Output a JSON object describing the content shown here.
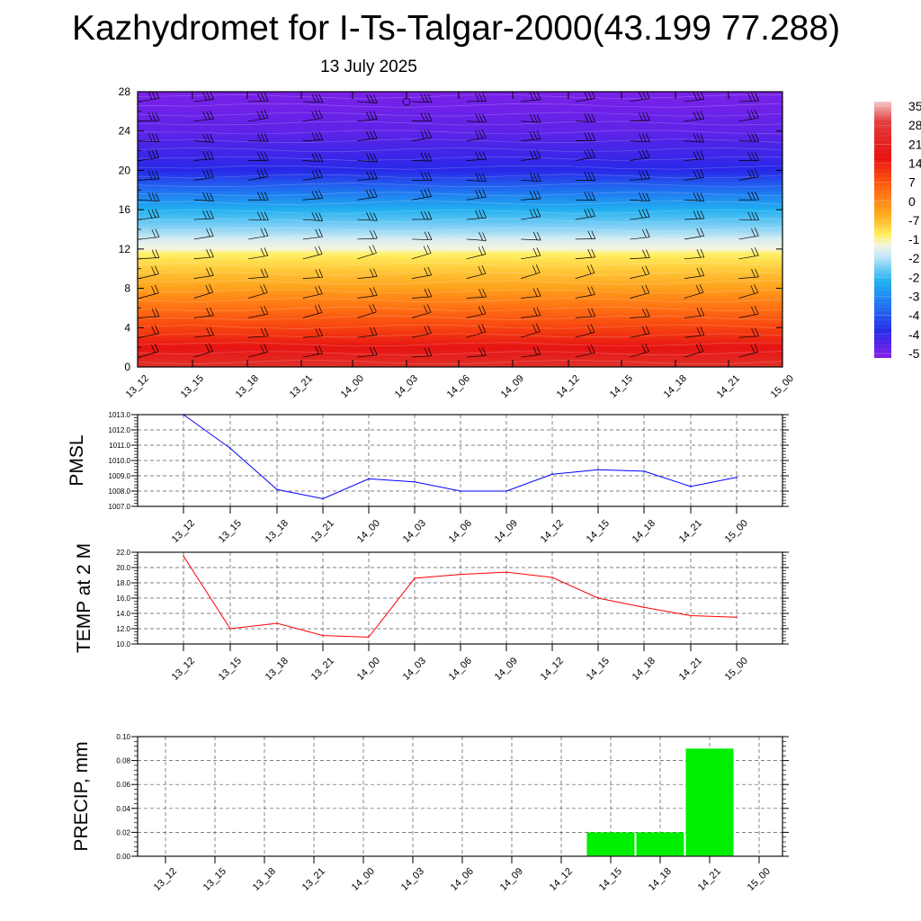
{
  "title": "Kazhydromet for I-Ts-Talgar-2000(43.199 77.288)",
  "subtitle": "13 July 2025",
  "chart_data": [
    {
      "type": "heatmap",
      "name": "vertical-temperature-wind-section",
      "x_labels": [
        "13_12",
        "13_15",
        "13_18",
        "13_21",
        "14_00",
        "14_03",
        "14_06",
        "14_09",
        "14_12",
        "14_15",
        "14_18",
        "14_21",
        "15_00"
      ],
      "y_ticks": [
        "0",
        "4",
        "8",
        "12",
        "16",
        "20",
        "24",
        "28"
      ],
      "ylim": [
        0,
        28
      ],
      "colorbar_labels": [
        "35",
        "28",
        "21",
        "14",
        "7",
        "0",
        "-7",
        "-1",
        "-2",
        "-2",
        "-3",
        "-4",
        "-4",
        "-5"
      ],
      "zlim": [
        -57,
        35
      ],
      "temperature_profile": [
        {
          "level": 0,
          "value": 30
        },
        {
          "level": 2,
          "value": 22
        },
        {
          "level": 4,
          "value": 14
        },
        {
          "level": 6,
          "value": 8
        },
        {
          "level": 8,
          "value": 2
        },
        {
          "level": 10,
          "value": -4
        },
        {
          "level": 11.5,
          "value": -9
        },
        {
          "level": 12,
          "value": -15
        },
        {
          "level": 13,
          "value": -20
        },
        {
          "level": 14,
          "value": -25
        },
        {
          "level": 16,
          "value": -31
        },
        {
          "level": 18,
          "value": -40
        },
        {
          "level": 20,
          "value": -50
        },
        {
          "level": 22,
          "value": -52
        },
        {
          "level": 24,
          "value": -54
        },
        {
          "level": 28,
          "value": -56
        }
      ],
      "wind_barbs": true
    },
    {
      "type": "line",
      "name": "pmsl",
      "ylabel": "PMSL",
      "x_labels": [
        "13_12",
        "13_15",
        "13_18",
        "13_21",
        "14_00",
        "14_03",
        "14_06",
        "14_09",
        "14_12",
        "14_15",
        "14_18",
        "14_21",
        "15_00"
      ],
      "values": [
        1013.0,
        1010.8,
        1008.1,
        1007.5,
        1008.8,
        1008.6,
        1008.0,
        1008.0,
        1009.1,
        1009.4,
        1009.3,
        1008.3,
        1008.9
      ],
      "ylim": [
        1007.0,
        1013.0
      ],
      "y_ticks": [
        "1007.0",
        "1008.0",
        "1009.0",
        "1010.0",
        "1011.0",
        "1012.0",
        "1013.0"
      ],
      "color": "#0000ff",
      "grid": true
    },
    {
      "type": "line",
      "name": "temp-2m",
      "ylabel": "TEMP at 2 M",
      "x_labels": [
        "13_12",
        "13_15",
        "13_18",
        "13_21",
        "14_00",
        "14_03",
        "14_06",
        "14_09",
        "14_12",
        "14_15",
        "14_18",
        "14_21",
        "15_00"
      ],
      "values": [
        21.5,
        12.0,
        12.7,
        11.1,
        10.9,
        18.6,
        19.1,
        19.4,
        18.7,
        16.0,
        14.8,
        13.7,
        13.5
      ],
      "ylim": [
        10.0,
        22.0
      ],
      "y_ticks": [
        "10.0",
        "12.0",
        "14.0",
        "16.0",
        "18.0",
        "20.0",
        "22.0"
      ],
      "color": "#ff0000",
      "grid": true
    },
    {
      "type": "bar",
      "name": "precip",
      "ylabel": "PRECIP, mm",
      "categories": [
        "13_12",
        "13_15",
        "13_18",
        "13_21",
        "14_00",
        "14_03",
        "14_06",
        "14_09",
        "14_12",
        "14_15",
        "14_18",
        "14_21",
        "15_00"
      ],
      "values": [
        0,
        0,
        0,
        0,
        0,
        0,
        0,
        0,
        0,
        0.02,
        0.02,
        0.09,
        0
      ],
      "ylim": [
        0,
        0.1
      ],
      "y_ticks": [
        "0.00",
        "0.02",
        "0.04",
        "0.06",
        "0.08",
        "0.10"
      ],
      "color": "#00ee00",
      "grid": true
    }
  ]
}
